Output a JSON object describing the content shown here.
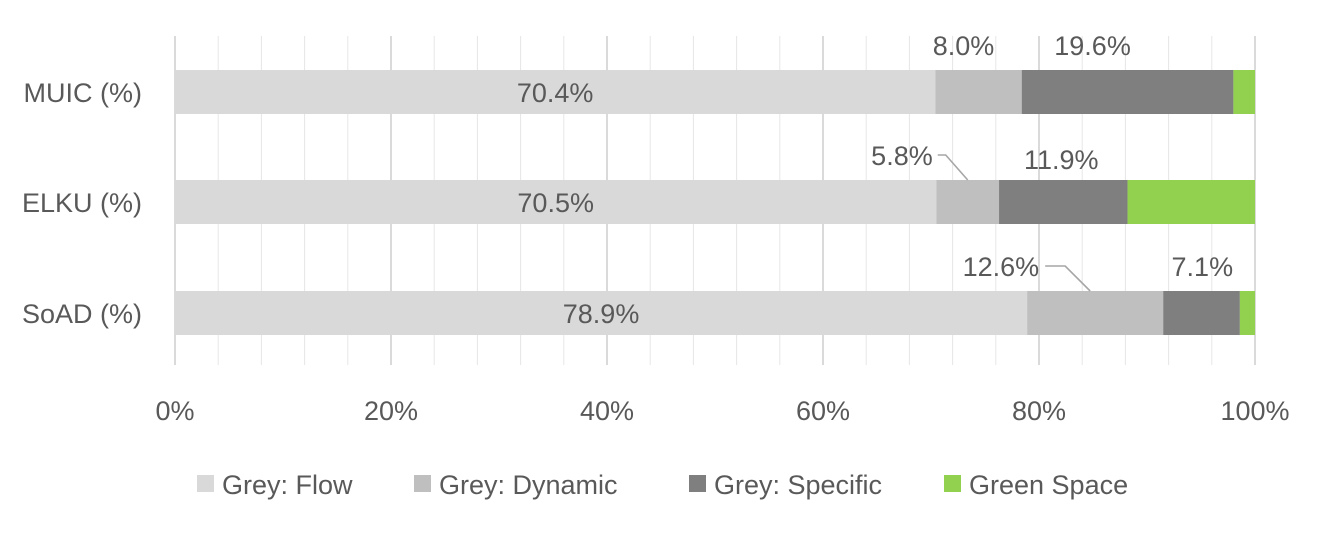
{
  "chart_data": {
    "type": "bar",
    "orientation": "horizontal",
    "stacked": "percent",
    "categories": [
      "MUIC (%)",
      "ELKU (%)",
      "SoAD (%)"
    ],
    "series": [
      {
        "name": "Grey: Flow",
        "color": "#d9d9d9",
        "values": [
          70.4,
          70.5,
          78.9
        ],
        "labels": [
          "70.4%",
          "70.5%",
          "78.9%"
        ]
      },
      {
        "name": "Grey: Dynamic",
        "color": "#bfbfbf",
        "values": [
          8.0,
          5.8,
          12.6
        ],
        "labels": [
          "8.0%",
          "5.8%",
          "12.6%"
        ]
      },
      {
        "name": "Grey: Specific",
        "color": "#7f7f7f",
        "values": [
          19.6,
          11.9,
          7.1
        ],
        "labels": [
          "19.6%",
          "11.9%",
          "7.1%"
        ]
      },
      {
        "name": "Green Space",
        "color": "#92d050",
        "values": [
          2.0,
          11.8,
          1.4
        ],
        "labels": [
          "",
          "",
          ""
        ]
      }
    ],
    "xaxis": {
      "range": [
        0,
        100
      ],
      "ticks": [
        "0%",
        "20%",
        "40%",
        "60%",
        "80%",
        "100%"
      ]
    },
    "grid": true,
    "legend": "bottom"
  }
}
